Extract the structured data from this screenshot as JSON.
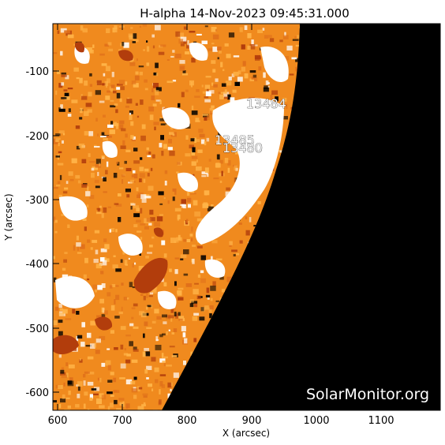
{
  "title": "H-alpha 14-Nov-2023 09:45:31.000",
  "x_axis": {
    "label": "X (arcsec)",
    "ticks": [
      "600",
      "700",
      "800",
      "900",
      "1000",
      "1100"
    ]
  },
  "y_axis": {
    "label": "Y (arcsec)",
    "ticks": [
      "-100",
      "-200",
      "-300",
      "-400",
      "-500",
      "-600"
    ]
  },
  "regions": [
    {
      "label": "13484"
    },
    {
      "label": "13485"
    },
    {
      "label": "13480"
    }
  ],
  "watermark": "SolarMonitor.org",
  "colors": {
    "background": "#ffffff",
    "disk_base": "#f08a1e",
    "disk_light": "#ffb347",
    "disk_dark": "#b23d0c",
    "bright_plage": "#ffffff",
    "space": "#000000"
  }
}
